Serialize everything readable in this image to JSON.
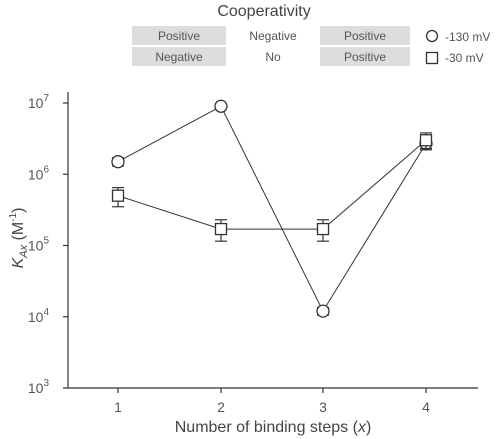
{
  "chart_data": {
    "type": "scatter",
    "title": "Cooperativity",
    "xlabel": "Number of binding steps (x)",
    "ylabel": "K_Ax (M⁻¹)",
    "y_scale": "log",
    "ylim": [
      1000,
      10000000
    ],
    "xlim": [
      0.5,
      4.5
    ],
    "x_ticks": [
      "1",
      "2",
      "3",
      "4"
    ],
    "y_ticks": [
      {
        "base": "10",
        "exp": "3"
      },
      {
        "base": "10",
        "exp": "4"
      },
      {
        "base": "10",
        "exp": "5"
      },
      {
        "base": "10",
        "exp": "6"
      },
      {
        "base": "10",
        "exp": "7"
      }
    ],
    "cooperativity_table": [
      [
        "Positive",
        "Negative",
        "Positive"
      ],
      [
        "Negative",
        "No",
        "Positive"
      ]
    ],
    "series": [
      {
        "name": "-130 mV",
        "marker": "circle",
        "x": [
          1,
          2,
          3,
          4
        ],
        "y": [
          1500000,
          9000000,
          12000,
          2700000
        ],
        "err_low": [
          1300000,
          8600000,
          10500,
          2200000
        ],
        "err_high": [
          1700000,
          9400000,
          13500,
          3300000
        ]
      },
      {
        "name": "-30 mV",
        "marker": "square",
        "x": [
          1,
          2,
          3,
          4
        ],
        "y": [
          500000,
          170000,
          170000,
          3000000
        ],
        "err_low": [
          350000,
          115000,
          115000,
          2300000
        ],
        "err_high": [
          650000,
          230000,
          230000,
          3800000
        ]
      }
    ]
  }
}
